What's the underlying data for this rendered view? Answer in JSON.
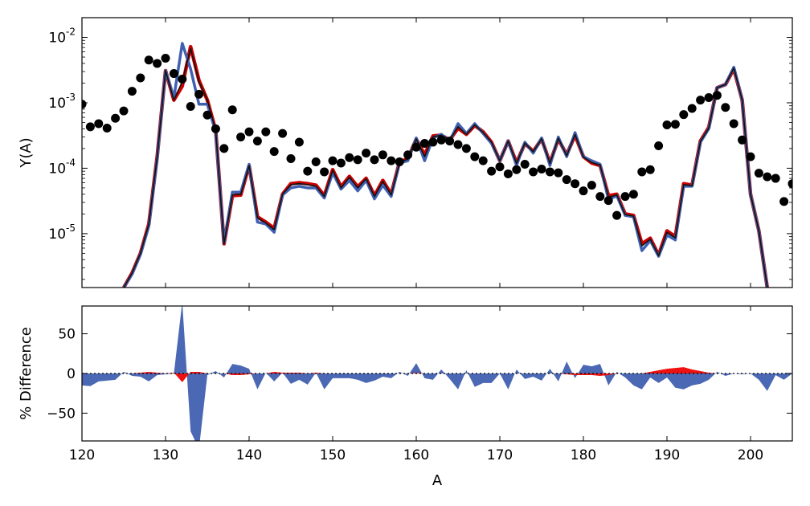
{
  "chart_data": [
    {
      "type": "line",
      "panel": "top",
      "title": "",
      "xlabel": "",
      "ylabel": "Y(A)",
      "xlim": [
        120,
        205
      ],
      "ylim": [
        1.5e-06,
        0.02
      ],
      "yscale": "log",
      "grid": false,
      "yticks": [
        {
          "base": "10",
          "exp": "-5",
          "value": 1e-05
        },
        {
          "base": "10",
          "exp": "-4",
          "value": 0.0001
        },
        {
          "base": "10",
          "exp": "-3",
          "value": 0.001
        },
        {
          "base": "10",
          "exp": "-2",
          "value": 0.01
        }
      ],
      "series": [
        {
          "kind": "scatter",
          "color": "#000000",
          "x": [
            120,
            121,
            122,
            123,
            124,
            125,
            126,
            127,
            128,
            129,
            130,
            131,
            132,
            133,
            134,
            135,
            136,
            137,
            138,
            139,
            140,
            141,
            142,
            143,
            144,
            145,
            146,
            147,
            148,
            149,
            150,
            151,
            152,
            153,
            154,
            155,
            156,
            157,
            158,
            159,
            160,
            161,
            162,
            163,
            164,
            165,
            166,
            167,
            168,
            169,
            170,
            171,
            172,
            173,
            174,
            175,
            176,
            177,
            178,
            179,
            180,
            181,
            182,
            183,
            184,
            185,
            186,
            187,
            188,
            189,
            190,
            191,
            192,
            193,
            194,
            195,
            196,
            197,
            198,
            199,
            200,
            201,
            202,
            203,
            204,
            205
          ],
          "y": [
            0.00095,
            0.00043,
            0.00048,
            0.00041,
            0.00058,
            0.00075,
            0.0015,
            0.0024,
            0.0045,
            0.004,
            0.0048,
            0.0028,
            0.0023,
            0.00088,
            0.00135,
            0.00065,
            0.0004,
            0.0002,
            0.00078,
            0.0003,
            0.00036,
            0.00026,
            0.00036,
            0.00018,
            0.00034,
            0.00014,
            0.00025,
            9e-05,
            0.000125,
            8.8e-05,
            0.00013,
            0.00012,
            0.000145,
            0.000135,
            0.00017,
            0.000135,
            0.00016,
            0.00013,
            0.000125,
            0.00016,
            0.00021,
            0.00024,
            0.00025,
            0.00027,
            0.00026,
            0.00023,
            0.0002,
            0.00015,
            0.00013,
            9e-05,
            0.000105,
            8.2e-05,
            9.5e-05,
            0.000115,
            8.8e-05,
            9.7e-05,
            8.8e-05,
            8.5e-05,
            6.7e-05,
            5.8e-05,
            4.5e-05,
            5.5e-05,
            3.7e-05,
            3.2e-05,
            1.9e-05,
            3.7e-05,
            4e-05,
            8.8e-05,
            9.5e-05,
            0.00022,
            0.00046,
            0.00047,
            0.00066,
            0.00082,
            0.0011,
            0.0012,
            0.0013,
            0.00085,
            0.00048,
            0.00027,
            0.00015,
            8.4e-05,
            7.4e-05,
            7e-05,
            3.1e-05,
            5.8e-05
          ]
        },
        {
          "kind": "line",
          "color": "#cc0000",
          "x": [
            125,
            126,
            127,
            128,
            129,
            130,
            131,
            132,
            133,
            134,
            135,
            136,
            137,
            138,
            139,
            140,
            141,
            142,
            143,
            144,
            145,
            146,
            147,
            148,
            149,
            150,
            151,
            152,
            153,
            154,
            155,
            156,
            157,
            158,
            159,
            160,
            161,
            162,
            163,
            164,
            165,
            166,
            167,
            168,
            169,
            170,
            171,
            172,
            173,
            174,
            175,
            176,
            177,
            178,
            179,
            180,
            181,
            182,
            183,
            184,
            185,
            186,
            187,
            188,
            189,
            190,
            191,
            192,
            193,
            194,
            195,
            196,
            197,
            198,
            199,
            200,
            201,
            202
          ],
          "y": [
            1.5e-06,
            2.5e-06,
            5e-06,
            1.4e-05,
            0.00015,
            0.0031,
            0.0011,
            0.0018,
            0.0072,
            0.0022,
            0.0011,
            0.00038,
            7e-06,
            3.8e-05,
            3.9e-05,
            0.00011,
            1.8e-05,
            1.5e-05,
            1.2e-05,
            4e-05,
            5.8e-05,
            6e-05,
            5.8e-05,
            5.5e-05,
            3.8e-05,
            9.5e-05,
            5.2e-05,
            7.5e-05,
            5.2e-05,
            7e-05,
            3.8e-05,
            6.5e-05,
            4e-05,
            0.000125,
            0.00014,
            0.00028,
            0.00016,
            0.00031,
            0.00032,
            0.00027,
            0.00041,
            0.00033,
            0.00045,
            0.00036,
            0.00025,
            0.00013,
            0.00026,
            0.00012,
            0.00024,
            0.00018,
            0.00028,
            0.00012,
            0.00028,
            0.00016,
            0.00032,
            0.00015,
            0.00012,
            0.00011,
            3.8e-05,
            4e-05,
            2e-05,
            1.9e-05,
            7e-06,
            8.5e-06,
            4.7e-06,
            1.1e-05,
            9e-06,
            5.8e-05,
            5.5e-05,
            0.00026,
            0.00042,
            0.0017,
            0.0019,
            0.0033,
            0.0011,
            4e-05,
            1.1e-05,
            1.5e-06
          ]
        },
        {
          "kind": "line",
          "color": "#4060b0",
          "x": [
            125,
            126,
            127,
            128,
            129,
            130,
            131,
            132,
            133,
            134,
            135,
            136,
            137,
            138,
            139,
            140,
            141,
            142,
            143,
            144,
            145,
            146,
            147,
            148,
            149,
            150,
            151,
            152,
            153,
            154,
            155,
            156,
            157,
            158,
            159,
            160,
            161,
            162,
            163,
            164,
            165,
            166,
            167,
            168,
            169,
            170,
            171,
            172,
            173,
            174,
            175,
            176,
            177,
            178,
            179,
            180,
            181,
            182,
            183,
            184,
            185,
            186,
            187,
            188,
            189,
            190,
            191,
            192,
            193,
            194,
            195,
            196,
            197,
            198,
            199,
            200,
            201,
            202
          ],
          "y": [
            1.5e-06,
            2.4e-06,
            4.8e-06,
            1.3e-05,
            0.00014,
            0.0031,
            0.0012,
            0.0081,
            0.0033,
            0.00095,
            0.00095,
            0.00036,
            7.2e-06,
            4.3e-05,
            4.3e-05,
            0.000115,
            1.5e-05,
            1.4e-05,
            1.05e-05,
            3.9e-05,
            5e-05,
            5.3e-05,
            5e-05,
            5e-05,
            3.5e-05,
            8.5e-05,
            4.8e-05,
            6.5e-05,
            4.5e-05,
            6.5e-05,
            3.4e-05,
            5.5e-05,
            3.7e-05,
            0.00012,
            0.00013,
            0.00029,
            0.00013,
            0.00029,
            0.00033,
            0.00026,
            0.00048,
            0.00034,
            0.00048,
            0.00034,
            0.00024,
            0.00013,
            0.00026,
            0.00011,
            0.00025,
            0.00017,
            0.00029,
            0.00011,
            0.0003,
            0.00015,
            0.00035,
            0.00015,
            0.00013,
            0.000115,
            3.3e-05,
            3.8e-05,
            1.9e-05,
            1.8e-05,
            5.5e-06,
            7.8e-06,
            4.5e-06,
            9.5e-06,
            8e-06,
            5.3e-05,
            5.3e-05,
            0.00025,
            0.0004,
            0.0017,
            0.0019,
            0.0035,
            0.0011,
            4e-05,
            1.1e-05,
            1.5e-06
          ]
        },
        {
          "kind": "line",
          "color": "#111111",
          "x": [
            125,
            126,
            127,
            128,
            129,
            130,
            131,
            132,
            133,
            134,
            135,
            136,
            137,
            138,
            139,
            140,
            141,
            142,
            143,
            144,
            145,
            146,
            147,
            148,
            149,
            150,
            151,
            152,
            153,
            154,
            155,
            156,
            157,
            158,
            159,
            160,
            161,
            162,
            163,
            164,
            165,
            166,
            167,
            168,
            169,
            170,
            171,
            172,
            173,
            174,
            175,
            176,
            177,
            178,
            179,
            180,
            181,
            182,
            183,
            184,
            185,
            186,
            187,
            188,
            189,
            190,
            191,
            192,
            193,
            194,
            195,
            196,
            197,
            198,
            199,
            200,
            201,
            202
          ],
          "y": [
            1.5e-06,
            2.5e-06,
            5e-06,
            1.4e-05,
            0.00015,
            0.0031,
            0.0011,
            0.0021,
            0.0068,
            0.0021,
            0.0011,
            0.00038,
            7e-06,
            3.9e-05,
            4e-05,
            0.00011,
            1.75e-05,
            1.45e-05,
            1.15e-05,
            4e-05,
            5.6e-05,
            5.8e-05,
            5.6e-05,
            5.3e-05,
            3.7e-05,
            9.3e-05,
            5e-05,
            7.3e-05,
            5e-05,
            6.9e-05,
            3.7e-05,
            6.3e-05,
            3.9e-05,
            0.000122,
            0.000138,
            0.00028,
            0.00015,
            0.0003,
            0.00032,
            0.00027,
            0.00043,
            0.00033,
            0.00046,
            0.00035,
            0.00025,
            0.00013,
            0.00026,
            0.000118,
            0.000242,
            0.000178,
            0.000282,
            0.000118,
            0.000288,
            0.000155,
            0.000328,
            0.000148,
            0.000122,
            0.000112,
            3.6e-05,
            3.9e-05,
            1.95e-05,
            1.85e-05,
            6.5e-06,
            8.2e-06,
            4.6e-06,
            1.05e-05,
            8.6e-06,
            5.6e-05,
            5.4e-05,
            0.000255,
            0.00041,
            0.0017,
            0.0019,
            0.0034,
            0.0011,
            4e-05,
            1.1e-05,
            1.5e-06
          ]
        }
      ]
    },
    {
      "type": "area",
      "panel": "bottom",
      "title": "",
      "xlabel": "A",
      "ylabel": "% Difference",
      "xlim": [
        120,
        205
      ],
      "ylim": [
        -85,
        85
      ],
      "xticks": [
        120,
        130,
        140,
        150,
        160,
        170,
        180,
        190,
        200
      ],
      "yticks": [
        50,
        0,
        -50
      ],
      "grid": false,
      "zero_line": "dotted",
      "series": [
        {
          "color": "#4060b0",
          "x": [
            120,
            121,
            122,
            123,
            124,
            125,
            126,
            127,
            128,
            129,
            130,
            131,
            132,
            133,
            134,
            135,
            136,
            137,
            138,
            139,
            140,
            141,
            142,
            143,
            144,
            145,
            146,
            147,
            148,
            149,
            150,
            151,
            152,
            153,
            154,
            155,
            156,
            157,
            158,
            159,
            160,
            161,
            162,
            163,
            164,
            165,
            166,
            167,
            168,
            169,
            170,
            171,
            172,
            173,
            174,
            175,
            176,
            177,
            178,
            179,
            180,
            181,
            182,
            183,
            184,
            185,
            186,
            187,
            188,
            189,
            190,
            191,
            192,
            193,
            194,
            195,
            196,
            197,
            198,
            199,
            200,
            201,
            202,
            203,
            204,
            205
          ],
          "y": [
            -15,
            -16,
            -10,
            -9,
            -8,
            2,
            -3,
            -4,
            -10,
            -2,
            -1,
            0,
            90,
            -73,
            -95,
            -2,
            3,
            -5,
            12,
            10,
            6,
            -20,
            1,
            -10,
            1,
            -13,
            -8,
            -14,
            1,
            -20,
            -6,
            -6,
            -6,
            -8,
            -12,
            -9,
            -4,
            -6,
            2,
            -3,
            13,
            -6,
            -8,
            5,
            -7,
            -20,
            4,
            -17,
            -12,
            -12,
            0,
            -20,
            5,
            -7,
            -4,
            -9,
            6,
            -10,
            15,
            -6,
            11,
            9,
            12,
            -15,
            2,
            -5,
            -15,
            -20,
            -5,
            -12,
            -5,
            -18,
            -20,
            -15,
            -13,
            -8,
            2,
            -3,
            0,
            -1,
            0,
            -8,
            -22,
            -2,
            -8,
            0
          ]
        },
        {
          "color": "#ee1111",
          "x": [
            120,
            121,
            122,
            123,
            124,
            125,
            126,
            127,
            128,
            129,
            130,
            131,
            132,
            133,
            134,
            135,
            136,
            137,
            138,
            139,
            140,
            141,
            142,
            143,
            144,
            145,
            146,
            147,
            148,
            149,
            150,
            151,
            152,
            153,
            154,
            155,
            156,
            157,
            158,
            159,
            160,
            161,
            162,
            163,
            164,
            165,
            166,
            167,
            168,
            169,
            170,
            171,
            172,
            173,
            174,
            175,
            176,
            177,
            178,
            179,
            180,
            181,
            182,
            183,
            184,
            185,
            186,
            187,
            188,
            189,
            190,
            191,
            192,
            193,
            194,
            195,
            196,
            197,
            198,
            199,
            200,
            201,
            202,
            203,
            204,
            205
          ],
          "y": [
            0,
            0,
            0,
            0,
            0,
            0,
            0,
            1,
            2,
            1,
            0,
            1,
            -11,
            2,
            2,
            0,
            0,
            0,
            -2,
            -2,
            -1,
            0,
            0,
            2,
            1,
            1,
            1,
            0,
            1,
            0,
            0,
            0,
            0,
            0,
            0,
            0,
            0,
            0,
            0,
            0,
            1,
            0,
            0,
            0,
            0,
            0,
            0,
            0,
            0,
            0,
            0,
            0,
            0,
            0,
            0,
            0,
            0,
            0,
            -1,
            -2,
            -2,
            -2,
            -3,
            -2,
            0,
            0,
            0,
            0,
            2,
            4,
            6,
            7,
            8,
            5,
            3,
            1,
            0,
            0,
            0,
            0,
            0,
            0,
            0,
            0,
            0,
            0
          ]
        }
      ]
    }
  ]
}
